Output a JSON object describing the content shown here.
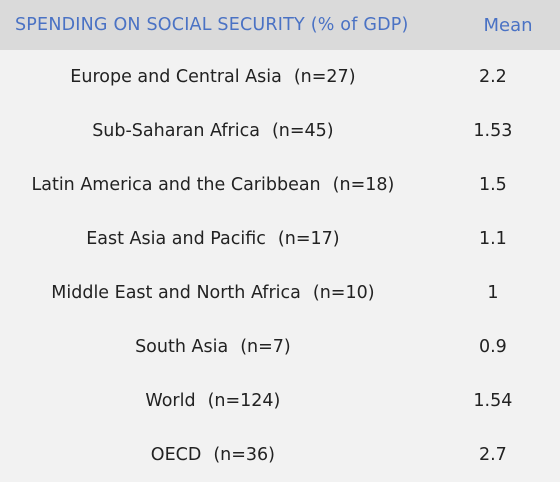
{
  "chart_data": {
    "type": "table",
    "columns": [
      "SPENDING ON SOCIAL SECURITY (% of GDP)",
      "Mean"
    ],
    "rows": [
      {
        "region": "Europe and Central Asia",
        "n": "(n=27)",
        "mean": "2.2"
      },
      {
        "region": "Sub-Saharan Africa",
        "n": "(n=45)",
        "mean": "1.53"
      },
      {
        "region": "Latin America and the Caribbean",
        "n": "(n=18)",
        "mean": "1.5"
      },
      {
        "region": "East Asia and Pacific",
        "n": "(n=17)",
        "mean": "1.1"
      },
      {
        "region": "Middle East and North Africa",
        "n": "(n=10)",
        "mean": "1"
      },
      {
        "region": "South Asia",
        "n": "(n=7)",
        "mean": "0.9"
      },
      {
        "region": "World",
        "n": "(n=124)",
        "mean": "1.54"
      },
      {
        "region": "OECD",
        "n": "(n=36)",
        "mean": "2.7"
      }
    ]
  },
  "colors": {
    "header_bg": "#dadada",
    "header_text": "#4a72c4",
    "body_bg": "#f2f2f2",
    "body_text": "#222222"
  }
}
